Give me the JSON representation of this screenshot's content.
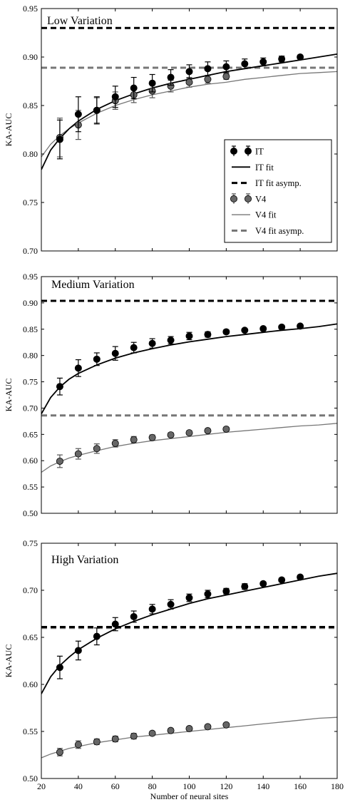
{
  "chart_data": [
    {
      "type": "line",
      "title": "Low Variation",
      "ylabel": "KA-AUC",
      "xlabel": "",
      "xlim": [
        20,
        180
      ],
      "ylim": [
        0.7,
        0.95
      ],
      "yticks": [
        0.7,
        0.75,
        0.8,
        0.85,
        0.9,
        0.95
      ],
      "xticks": [],
      "grid": false,
      "legend_position": "right",
      "series": [
        {
          "name": "IT",
          "color": "#000000",
          "x": [
            30,
            40,
            50,
            60,
            70,
            80,
            90,
            100,
            110,
            120,
            130,
            140,
            150,
            160
          ],
          "y": [
            0.815,
            0.841,
            0.845,
            0.859,
            0.868,
            0.873,
            0.879,
            0.885,
            0.888,
            0.89,
            0.893,
            0.895,
            0.898,
            0.9
          ],
          "err": [
            0.02,
            0.018,
            0.014,
            0.011,
            0.011,
            0.009,
            0.008,
            0.007,
            0.007,
            0.006,
            0.005,
            0.004,
            0.003,
            0.002
          ]
        },
        {
          "name": "IT fit",
          "color": "#000000",
          "x": [
            20,
            25,
            30,
            35,
            40,
            50,
            60,
            70,
            80,
            90,
            100,
            110,
            120,
            130,
            140,
            150,
            160,
            170,
            180
          ],
          "y": [
            0.784,
            0.804,
            0.816,
            0.826,
            0.834,
            0.846,
            0.855,
            0.862,
            0.868,
            0.873,
            0.877,
            0.881,
            0.885,
            0.888,
            0.891,
            0.894,
            0.897,
            0.9,
            0.903
          ]
        },
        {
          "name": "IT fit asymp.",
          "color": "#000000",
          "y": 0.93
        },
        {
          "name": "V4",
          "color": "#666666",
          "x": [
            30,
            40,
            50,
            60,
            70,
            80,
            90,
            100,
            110,
            120
          ],
          "y": [
            0.817,
            0.83,
            0.845,
            0.855,
            0.861,
            0.865,
            0.87,
            0.874,
            0.877,
            0.88
          ],
          "err": [
            0.02,
            0.015,
            0.013,
            0.009,
            0.008,
            0.007,
            0.006,
            0.005,
            0.004,
            0.003
          ]
        },
        {
          "name": "V4 fit",
          "color": "#777777",
          "x": [
            20,
            25,
            30,
            35,
            40,
            50,
            60,
            70,
            80,
            90,
            100,
            110,
            120,
            130,
            140,
            150,
            160,
            170,
            180
          ],
          "y": [
            0.797,
            0.81,
            0.819,
            0.826,
            0.832,
            0.842,
            0.85,
            0.856,
            0.861,
            0.865,
            0.869,
            0.872,
            0.874,
            0.877,
            0.879,
            0.881,
            0.883,
            0.884,
            0.885
          ]
        },
        {
          "name": "V4 fit asymp.",
          "color": "#777777",
          "y": 0.889
        }
      ]
    },
    {
      "type": "line",
      "title": "Medium Variation",
      "ylabel": "KA-AUC",
      "xlabel": "",
      "xlim": [
        20,
        180
      ],
      "ylim": [
        0.5,
        0.95
      ],
      "yticks": [
        0.5,
        0.55,
        0.6,
        0.65,
        0.7,
        0.75,
        0.8,
        0.85,
        0.9,
        0.95
      ],
      "xticks": [],
      "grid": false,
      "series": [
        {
          "name": "IT",
          "color": "#000000",
          "x": [
            30,
            40,
            50,
            60,
            70,
            80,
            90,
            100,
            110,
            120,
            130,
            140,
            150,
            160
          ],
          "y": [
            0.741,
            0.776,
            0.793,
            0.804,
            0.815,
            0.823,
            0.829,
            0.837,
            0.84,
            0.845,
            0.848,
            0.851,
            0.854,
            0.856
          ],
          "err": [
            0.016,
            0.016,
            0.012,
            0.013,
            0.01,
            0.009,
            0.007,
            0.007,
            0.005,
            0.004,
            0.003,
            0.003,
            0.003,
            0.002
          ]
        },
        {
          "name": "IT fit",
          "color": "#000000",
          "x": [
            20,
            25,
            30,
            35,
            40,
            50,
            60,
            70,
            80,
            90,
            100,
            110,
            120,
            130,
            140,
            150,
            160,
            170,
            180
          ],
          "y": [
            0.689,
            0.72,
            0.74,
            0.755,
            0.766,
            0.782,
            0.795,
            0.805,
            0.813,
            0.82,
            0.826,
            0.831,
            0.836,
            0.84,
            0.844,
            0.848,
            0.851,
            0.855,
            0.86
          ]
        },
        {
          "name": "IT fit asymp.",
          "color": "#000000",
          "y": 0.904
        },
        {
          "name": "V4",
          "color": "#666666",
          "x": [
            30,
            40,
            50,
            60,
            70,
            80,
            90,
            100,
            110,
            120
          ],
          "y": [
            0.599,
            0.613,
            0.623,
            0.633,
            0.64,
            0.644,
            0.649,
            0.653,
            0.657,
            0.66
          ],
          "err": [
            0.012,
            0.01,
            0.009,
            0.007,
            0.006,
            0.005,
            0.004,
            0.004,
            0.003,
            0.003
          ]
        },
        {
          "name": "V4 fit",
          "color": "#777777",
          "x": [
            20,
            25,
            30,
            35,
            40,
            50,
            60,
            70,
            80,
            90,
            100,
            110,
            120,
            130,
            140,
            150,
            160,
            170,
            180
          ],
          "y": [
            0.578,
            0.59,
            0.598,
            0.605,
            0.61,
            0.619,
            0.627,
            0.633,
            0.638,
            0.642,
            0.646,
            0.65,
            0.654,
            0.657,
            0.66,
            0.663,
            0.666,
            0.668,
            0.671
          ]
        },
        {
          "name": "V4 fit asymp.",
          "color": "#777777",
          "y": 0.686
        }
      ]
    },
    {
      "type": "line",
      "title": "High Variation",
      "ylabel": "KA-AUC",
      "xlabel": "Number of neural sites",
      "xlim": [
        20,
        180
      ],
      "ylim": [
        0.5,
        0.75
      ],
      "yticks": [
        0.5,
        0.55,
        0.6,
        0.65,
        0.7,
        0.75
      ],
      "xticks": [
        20,
        40,
        60,
        80,
        100,
        120,
        140,
        160,
        180
      ],
      "grid": false,
      "series": [
        {
          "name": "IT",
          "color": "#000000",
          "x": [
            30,
            40,
            50,
            60,
            70,
            80,
            90,
            100,
            110,
            120,
            130,
            140,
            150,
            160
          ],
          "y": [
            0.618,
            0.636,
            0.651,
            0.664,
            0.672,
            0.68,
            0.685,
            0.692,
            0.696,
            0.699,
            0.704,
            0.707,
            0.711,
            0.714
          ],
          "err": [
            0.012,
            0.01,
            0.009,
            0.007,
            0.006,
            0.005,
            0.005,
            0.004,
            0.004,
            0.003,
            0.003,
            0.002,
            0.002,
            0.002
          ]
        },
        {
          "name": "IT fit",
          "color": "#000000",
          "x": [
            20,
            25,
            30,
            35,
            40,
            50,
            60,
            70,
            80,
            90,
            100,
            110,
            120,
            130,
            140,
            150,
            160,
            170,
            180
          ],
          "y": [
            0.59,
            0.608,
            0.62,
            0.629,
            0.637,
            0.649,
            0.659,
            0.667,
            0.674,
            0.68,
            0.686,
            0.691,
            0.695,
            0.699,
            0.703,
            0.707,
            0.711,
            0.715,
            0.718
          ]
        },
        {
          "name": "IT fit asymp.",
          "color": "#000000",
          "y": 0.661
        },
        {
          "name": "V4",
          "color": "#666666",
          "x": [
            30,
            40,
            50,
            60,
            70,
            80,
            90,
            100,
            110,
            120
          ],
          "y": [
            0.528,
            0.536,
            0.539,
            0.542,
            0.545,
            0.548,
            0.551,
            0.553,
            0.555,
            0.557
          ],
          "err": [
            0.004,
            0.004,
            0.003,
            0.003,
            0.003,
            0.002,
            0.002,
            0.002,
            0.002,
            0.002
          ]
        },
        {
          "name": "V4 fit",
          "color": "#777777",
          "x": [
            20,
            25,
            30,
            35,
            40,
            50,
            60,
            70,
            80,
            90,
            100,
            110,
            120,
            130,
            140,
            150,
            160,
            170,
            180
          ],
          "y": [
            0.522,
            0.526,
            0.529,
            0.532,
            0.534,
            0.538,
            0.541,
            0.544,
            0.546,
            0.548,
            0.55,
            0.552,
            0.554,
            0.556,
            0.558,
            0.56,
            0.562,
            0.564,
            0.565
          ]
        },
        {
          "name": "V4 fit asymp.",
          "color": "#777777",
          "y": 0.66
        }
      ]
    }
  ]
}
